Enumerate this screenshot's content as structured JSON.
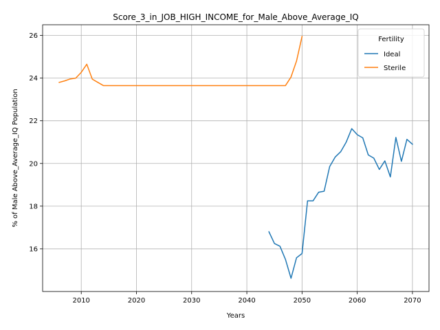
{
  "chart_data": {
    "type": "line",
    "title": "Score_3_in_JOB_HIGH_INCOME_for_Male_Above_Average_IQ",
    "xlabel": "Years",
    "ylabel": "% of Male Above_Average_IQ Population",
    "xlim": [
      2003,
      2073
    ],
    "ylim": [
      14.0,
      26.5
    ],
    "x_ticks": [
      2010,
      2020,
      2030,
      2040,
      2050,
      2060,
      2070
    ],
    "y_ticks": [
      16,
      18,
      20,
      22,
      24,
      26
    ],
    "grid": true,
    "legend": {
      "title": "Fertility",
      "position": "top-right"
    },
    "series": [
      {
        "name": "Ideal",
        "color": "#1f77b4",
        "x": [
          2044,
          2045,
          2046,
          2047,
          2048,
          2049,
          2050,
          2051,
          2052,
          2053,
          2054,
          2055,
          2056,
          2057,
          2058,
          2059,
          2060,
          2061,
          2062,
          2063,
          2064,
          2065,
          2066,
          2067,
          2068,
          2069,
          2070
        ],
        "y": [
          16.8,
          16.25,
          16.12,
          15.5,
          14.62,
          15.58,
          15.78,
          18.25,
          18.25,
          18.65,
          18.7,
          19.85,
          20.3,
          20.55,
          21.0,
          21.63,
          21.35,
          21.2,
          20.4,
          20.25,
          19.72,
          20.12,
          19.37,
          21.22,
          20.1,
          21.13,
          20.9
        ]
      },
      {
        "name": "Sterile",
        "color": "#ff7f0e",
        "x": [
          2006,
          2007,
          2008,
          2009,
          2010,
          2011,
          2012,
          2013,
          2014,
          2015,
          2016,
          2017,
          2018,
          2019,
          2020,
          2021,
          2022,
          2023,
          2024,
          2025,
          2026,
          2027,
          2028,
          2029,
          2030,
          2031,
          2032,
          2033,
          2034,
          2035,
          2036,
          2037,
          2038,
          2039,
          2040,
          2041,
          2042,
          2043,
          2044,
          2045,
          2046,
          2047,
          2048,
          2049,
          2050
        ],
        "y": [
          23.8,
          23.87,
          23.96,
          24.0,
          24.27,
          24.65,
          23.95,
          23.8,
          23.65,
          23.65,
          23.65,
          23.65,
          23.65,
          23.65,
          23.65,
          23.65,
          23.65,
          23.65,
          23.65,
          23.65,
          23.65,
          23.65,
          23.65,
          23.65,
          23.65,
          23.65,
          23.65,
          23.65,
          23.65,
          23.65,
          23.65,
          23.65,
          23.65,
          23.65,
          23.65,
          23.65,
          23.65,
          23.65,
          23.65,
          23.65,
          23.65,
          23.65,
          24.05,
          24.8,
          25.95
        ]
      }
    ]
  }
}
